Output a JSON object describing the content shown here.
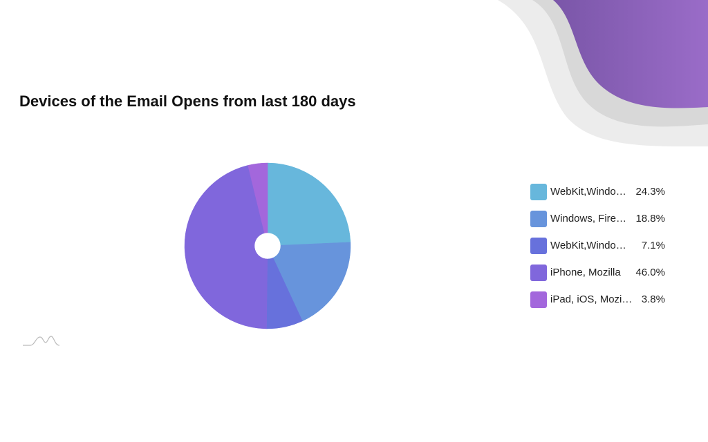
{
  "chart_data": {
    "type": "pie",
    "title": "Devices of the Email Opens from last 180 days",
    "categories": [
      "WebKit,Windo…",
      "Windows, Fire…",
      "WebKit,Windo…",
      "iPhone, Mozilla",
      "iPad, iOS, Mozi…"
    ],
    "values": [
      24.3,
      18.8,
      7.1,
      46.0,
      3.8
    ],
    "value_labels": [
      "24.3%",
      "18.8%",
      "7.1%",
      "46.0%",
      "3.8%"
    ],
    "colors": [
      "#67b7dc",
      "#6794dc",
      "#6771dc",
      "#8067dc",
      "#a367dc"
    ],
    "legend": "right"
  }
}
